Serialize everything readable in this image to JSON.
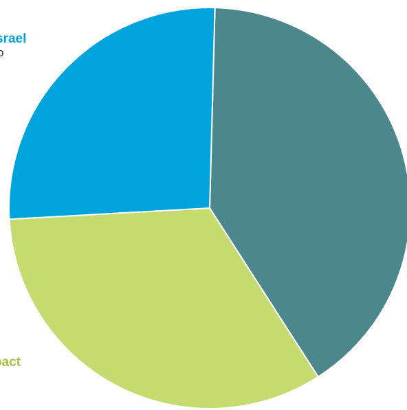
{
  "chart_data": {
    "type": "pie",
    "title": "",
    "slices": [
      {
        "label": "",
        "value": 40.5,
        "color": "#4b878d"
      },
      {
        "label": "pact",
        "value": 33.2,
        "color": "#c5da6f"
      },
      {
        "label": "srael",
        "value": 26.3,
        "color": "#00a3dc"
      }
    ],
    "start_angle_deg": 1.5,
    "clockwise": true,
    "label_fragments": {
      "israel_sub": "o"
    }
  }
}
